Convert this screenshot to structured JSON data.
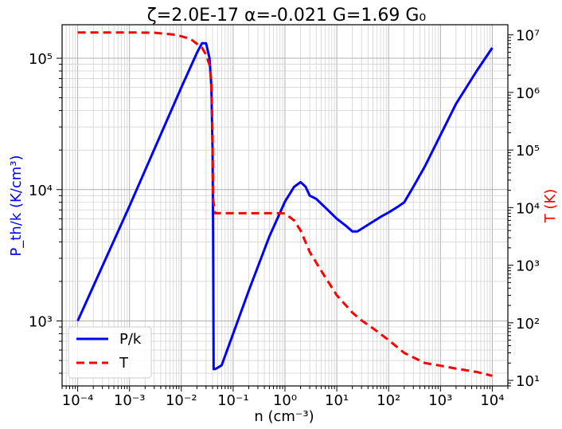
{
  "chart_data": {
    "type": "line",
    "title": "ζ=2.0E-17 α=-0.021 G=1.69 G₀",
    "xlabel": "n (cm⁻³)",
    "ylabel_left": "P_th/k (K/cm³)",
    "ylabel_right": "T (K)",
    "xscale": "log",
    "yscale_left": "log",
    "yscale_right": "log",
    "xlim": [
      5e-05,
      20000
    ],
    "ylim_left": [
      320,
      180000
    ],
    "ylim_right": [
      8,
      15000000
    ],
    "grid": true,
    "legend_position": "lower-left",
    "x_tick_labels": [
      "10⁻⁴",
      "10⁻³",
      "10⁻²",
      "10⁻¹",
      "10⁰",
      "10¹",
      "10²",
      "10³",
      "10⁴"
    ],
    "y_left_tick_labels": [
      "10³",
      "10⁴",
      "10⁵"
    ],
    "y_right_tick_labels": [
      "10¹",
      "10²",
      "10³",
      "10⁴",
      "10⁵",
      "10⁶",
      "10⁷"
    ],
    "colors": {
      "pressure": "#0000ff",
      "temperature": "#ff0000"
    },
    "series": [
      {
        "name": "P/k",
        "axis": "left",
        "style": "solid",
        "color": "#0000ff",
        "x": [
          0.0001,
          0.001,
          0.01,
          0.02,
          0.025,
          0.03,
          0.035,
          0.038,
          0.04,
          0.041,
          0.042,
          0.045,
          0.05,
          0.06,
          0.1,
          0.2,
          0.5,
          1,
          1.5,
          2,
          2.5,
          3,
          4,
          6,
          10,
          15,
          20,
          25,
          40,
          70,
          100,
          150,
          200,
          300,
          500,
          1000,
          2000,
          5000,
          10000
        ],
        "y": [
          1000,
          7500,
          60000,
          110000,
          130000,
          130000,
          100000,
          60000,
          20000,
          5000,
          430,
          430,
          440,
          460,
          800,
          1700,
          4400,
          8100,
          10500,
          11400,
          10500,
          9000,
          8500,
          7300,
          6000,
          5300,
          4800,
          4800,
          5400,
          6200,
          6700,
          7400,
          8000,
          10500,
          15000,
          26000,
          45000,
          80000,
          120000
        ]
      },
      {
        "name": "T",
        "axis": "right",
        "style": "dashed",
        "color": "#ff0000",
        "x": [
          0.0001,
          0.001,
          0.003,
          0.008,
          0.015,
          0.025,
          0.03,
          0.035,
          0.038,
          0.04,
          0.041,
          0.045,
          0.06,
          0.1,
          0.3,
          0.6,
          0.8,
          1,
          1.5,
          2,
          3,
          5,
          10,
          20,
          30,
          50,
          100,
          200,
          300,
          500,
          1000,
          2000,
          5000,
          10000
        ],
        "y": [
          11000000,
          11000000,
          10900000,
          10000000,
          8500000,
          6000000,
          4500000,
          3000000,
          1500000,
          200000,
          14000,
          8000,
          8000,
          8000,
          8000,
          8000,
          8000,
          7900,
          6000,
          4000,
          1700,
          800,
          300,
          150,
          110,
          80,
          50,
          30,
          25,
          20,
          18,
          16,
          14,
          12
        ]
      }
    ]
  }
}
